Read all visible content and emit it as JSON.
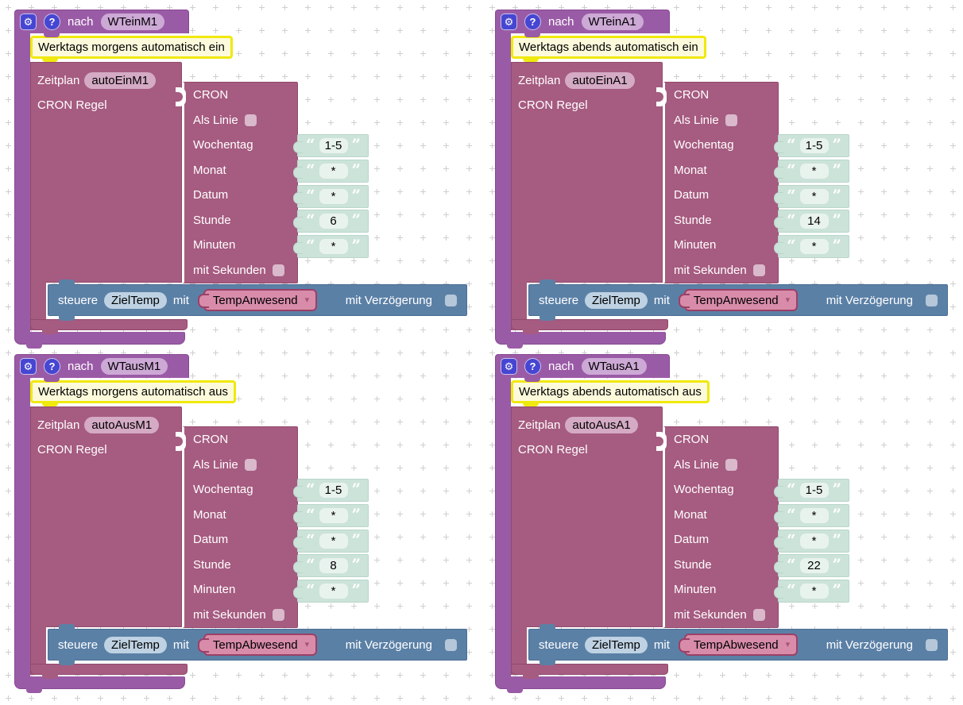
{
  "ui": {
    "open_quote": "“",
    "close_quote": "”",
    "dropdown_arrow": "▾",
    "gear_icon": "⚙",
    "help_icon": "?"
  },
  "colors": {
    "wrapper_purple": "#9a5ba6",
    "schedule_mauve": "#a65b80",
    "control_blue": "#5b80a6",
    "text_shadow_teal": "#cce3d9",
    "comment_yellow": "#f0e90d",
    "dropdown_rose": "#d88ca9",
    "icon_blue": "#4646d2"
  },
  "groups": [
    {
      "nach_label": "nach",
      "name_value": "WTeinM1",
      "comment": "Werktags morgens automatisch ein",
      "zeitplan_label": "Zeitplan",
      "zeitplan_value": "autoEinM1",
      "cron_regel_label": "CRON Regel",
      "cron": {
        "title": "CRON",
        "als_linie_label": "Als Linie",
        "fields": [
          {
            "label": "Wochentag",
            "value": "1-5"
          },
          {
            "label": "Monat",
            "value": "*"
          },
          {
            "label": "Datum",
            "value": "*"
          },
          {
            "label": "Stunde",
            "value": "6"
          },
          {
            "label": "Minuten",
            "value": "*"
          }
        ],
        "mit_sekunden_label": "mit Sekunden"
      },
      "control": {
        "steuere_label": "steuere",
        "target_value": "ZielTemp",
        "mit_label": "mit",
        "dropdown_value": "TempAnwesend",
        "delay_label": "mit Verzögerung"
      }
    },
    {
      "nach_label": "nach",
      "name_value": "WTeinA1",
      "comment": "Werktags abends automatisch ein",
      "zeitplan_label": "Zeitplan",
      "zeitplan_value": "autoEinA1",
      "cron_regel_label": "CRON Regel",
      "cron": {
        "title": "CRON",
        "als_linie_label": "Als Linie",
        "fields": [
          {
            "label": "Wochentag",
            "value": "1-5"
          },
          {
            "label": "Monat",
            "value": "*"
          },
          {
            "label": "Datum",
            "value": "*"
          },
          {
            "label": "Stunde",
            "value": "14"
          },
          {
            "label": "Minuten",
            "value": "*"
          }
        ],
        "mit_sekunden_label": "mit Sekunden"
      },
      "control": {
        "steuere_label": "steuere",
        "target_value": "ZielTemp",
        "mit_label": "mit",
        "dropdown_value": "TempAnwesend",
        "delay_label": "mit Verzögerung"
      }
    },
    {
      "nach_label": "nach",
      "name_value": "WTausM1",
      "comment": "Werktags morgens automatisch aus",
      "zeitplan_label": "Zeitplan",
      "zeitplan_value": "autoAusM1",
      "cron_regel_label": "CRON Regel",
      "cron": {
        "title": "CRON",
        "als_linie_label": "Als Linie",
        "fields": [
          {
            "label": "Wochentag",
            "value": "1-5"
          },
          {
            "label": "Monat",
            "value": "*"
          },
          {
            "label": "Datum",
            "value": "*"
          },
          {
            "label": "Stunde",
            "value": "8"
          },
          {
            "label": "Minuten",
            "value": "*"
          }
        ],
        "mit_sekunden_label": "mit Sekunden"
      },
      "control": {
        "steuere_label": "steuere",
        "target_value": "ZielTemp",
        "mit_label": "mit",
        "dropdown_value": "TempAbwesend",
        "delay_label": "mit Verzögerung"
      }
    },
    {
      "nach_label": "nach",
      "name_value": "WTausA1",
      "comment": "Werktags abends automatisch aus",
      "zeitplan_label": "Zeitplan",
      "zeitplan_value": "autoAusA1",
      "cron_regel_label": "CRON Regel",
      "cron": {
        "title": "CRON",
        "als_linie_label": "Als Linie",
        "fields": [
          {
            "label": "Wochentag",
            "value": "1-5"
          },
          {
            "label": "Monat",
            "value": "*"
          },
          {
            "label": "Datum",
            "value": "*"
          },
          {
            "label": "Stunde",
            "value": "22"
          },
          {
            "label": "Minuten",
            "value": "*"
          }
        ],
        "mit_sekunden_label": "mit Sekunden"
      },
      "control": {
        "steuere_label": "steuere",
        "target_value": "ZielTemp",
        "mit_label": "mit",
        "dropdown_value": "TempAbwesend",
        "delay_label": "mit Verzögerung"
      }
    }
  ]
}
